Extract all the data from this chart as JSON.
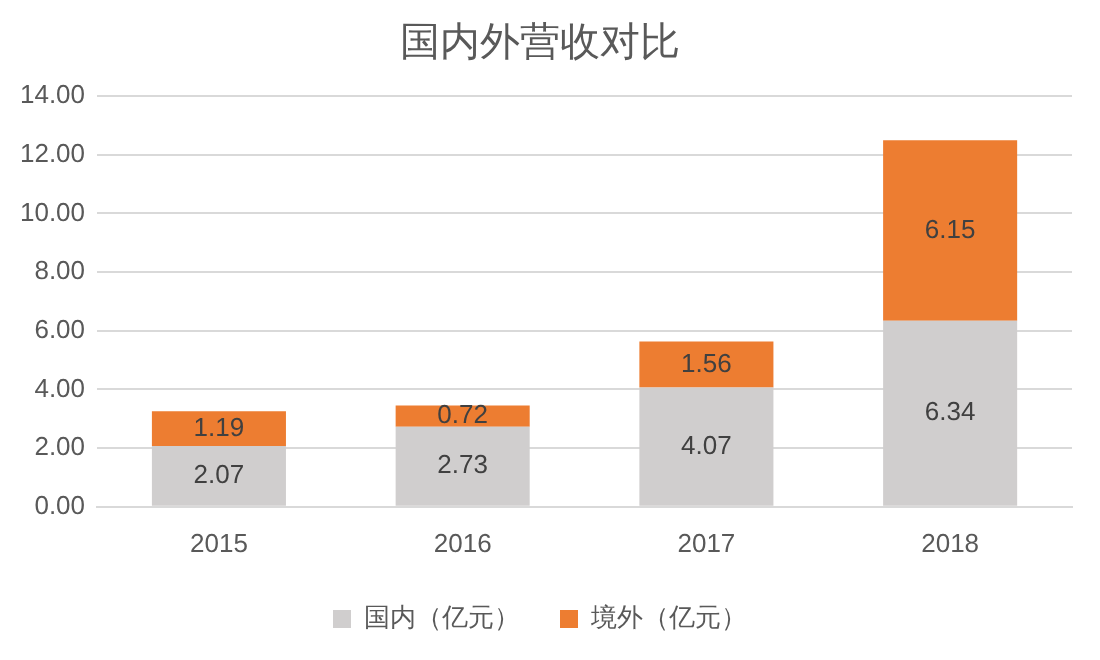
{
  "chart_data": {
    "type": "bar",
    "title": "国内外营收对比",
    "categories": [
      "2015",
      "2016",
      "2017",
      "2018"
    ],
    "stacked": true,
    "series": [
      {
        "name": "国内（亿元）",
        "color": "#d0cece",
        "values": [
          2.07,
          2.73,
          4.07,
          6.34
        ]
      },
      {
        "name": "境外（亿元）",
        "color": "#ed7d31",
        "values": [
          1.19,
          0.72,
          1.56,
          6.15
        ]
      }
    ],
    "ylim": [
      0,
      14
    ],
    "yticks": [
      {
        "value": 0,
        "label": "0.00"
      },
      {
        "value": 2,
        "label": "2.00"
      },
      {
        "value": 4,
        "label": "4.00"
      },
      {
        "value": 6,
        "label": "6.00"
      },
      {
        "value": 8,
        "label": "8.00"
      },
      {
        "value": 10,
        "label": "10.00"
      },
      {
        "value": 12,
        "label": "12.00"
      },
      {
        "value": 14,
        "label": "14.00"
      }
    ],
    "grid": "y",
    "legend": "bottom",
    "data_labels": true
  }
}
